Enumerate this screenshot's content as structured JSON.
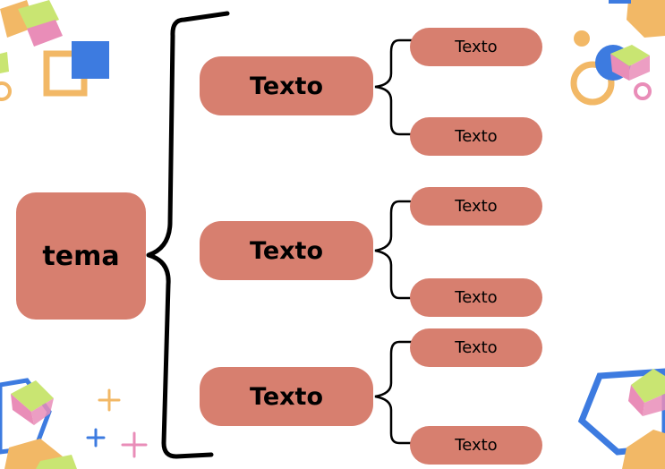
{
  "diagram": {
    "root": {
      "label": "tema"
    },
    "branches": [
      {
        "label": "Texto",
        "children": [
          "Texto",
          "Texto"
        ]
      },
      {
        "label": "Texto",
        "children": [
          "Texto",
          "Texto"
        ]
      },
      {
        "label": "Texto",
        "children": [
          "Texto",
          "Texto"
        ]
      }
    ]
  },
  "colors": {
    "node_fill": "#d77f6f",
    "connector": "#000000",
    "decor_orange": "#f2b866",
    "decor_blue": "#3d7be0",
    "decor_pink": "#e98db8",
    "decor_green": "#c9e572"
  }
}
